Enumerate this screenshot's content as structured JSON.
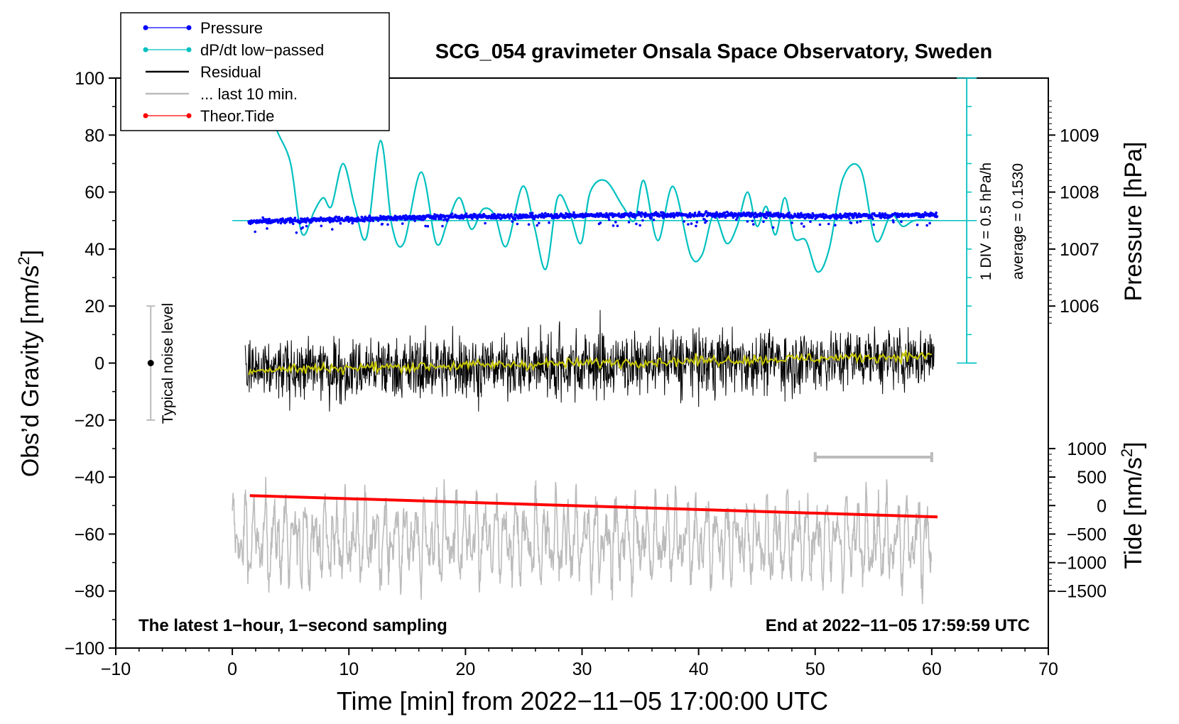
{
  "chart_data": {
    "type": "line",
    "title": "SCG_054 gravimeter Onsala Space Observatory, Sweden",
    "xlabel": "Time [min] from 2022−11−05 17:00:00 UTC",
    "xlim": [
      -10,
      70
    ],
    "x_ticks": [
      -10,
      0,
      10,
      20,
      30,
      40,
      50,
      60,
      70
    ],
    "x_tick_labels": [
      "−10",
      "0",
      "10",
      "20",
      "30",
      "40",
      "50",
      "60",
      "70"
    ],
    "left_axis": {
      "label_main": "Obs’d Gravity [nm/s",
      "label_sup": "2",
      "label_end": "]",
      "ylim": [
        -100,
        100
      ],
      "ticks": [
        -100,
        -80,
        -60,
        -40,
        -20,
        0,
        20,
        40,
        60,
        80,
        100
      ],
      "tick_labels": [
        "−100",
        "−80",
        "−60",
        "−40",
        "−20",
        "0",
        "20",
        "40",
        "60",
        "80",
        "100"
      ]
    },
    "pressure_axis": {
      "label": "Pressure [hPa]",
      "ticks": [
        1006,
        1007,
        1008,
        1009
      ],
      "tick_labels": [
        "1006",
        "1007",
        "1008",
        "1009"
      ],
      "gravity_at_1007": 40,
      "gravity_per_hpa": 20
    },
    "tide_axis": {
      "label_main": "Tide [nm/s",
      "label_sup": "2",
      "label_end": "]",
      "ticks": [
        1000,
        500,
        0,
        -500,
        -1000,
        -1500
      ],
      "tick_labels": [
        "1000",
        "500",
        "0",
        "−500",
        "−1000",
        "−1500"
      ],
      "gravity_at_0": -50,
      "gravity_per_unit": 0.02
    },
    "dpdt_scale": {
      "label_div": "1 DIV = 0.5 hPa/h",
      "label_avg": "average = 0.1530",
      "x": 63,
      "baseline": 50,
      "bottom": 0,
      "top": 100,
      "div_step": 10
    },
    "legend": {
      "position": "top-left",
      "entries": [
        {
          "label": "Pressure",
          "color": "#0000ff",
          "style": "line-dot"
        },
        {
          "label": "dP/dt low−passed",
          "color": "#00c0c0",
          "style": "line-dot"
        },
        {
          "label": "Residual",
          "color": "#000000",
          "style": "line"
        },
        {
          "label": "... last 10 min.",
          "color": "#bbbbbb",
          "style": "line"
        },
        {
          "label": "Theor.Tide",
          "color": "#ff0000",
          "style": "line-dot"
        }
      ]
    },
    "noise_bar": {
      "label": "Typical noise level",
      "x": -7,
      "center": 0,
      "low": -20,
      "high": 20
    },
    "window_bar": {
      "x_start": 50,
      "x_end": 60,
      "y": -33
    },
    "annotation_left": "The latest 1−hour, 1−second sampling",
    "annotation_right": "End at 2022−11−05 17:59:59 UTC",
    "colors": {
      "pressure": "#0000ff",
      "dpdt": "#00c0c0",
      "residual": "#000000",
      "residual_smooth": "#c8c800",
      "last10": "#bbbbbb",
      "tide": "#ff0000"
    },
    "series": {
      "dpdt": {
        "name": "dP/dt low−passed",
        "x": [
          0.1,
          1.0,
          2.0,
          3.0,
          4.0,
          5.0,
          5.7,
          6.2,
          7.0,
          7.8,
          8.5,
          9.5,
          10.5,
          11.5,
          12.7,
          13.7,
          14.7,
          16.2,
          17.5,
          18.5,
          19.5,
          20.5,
          21.5,
          22.5,
          23.5,
          24.9,
          25.9,
          26.9,
          27.9,
          28.9,
          29.9,
          30.7,
          32.0,
          33.5,
          34.5,
          35.3,
          36.5,
          37.8,
          39.3,
          40.3,
          41.3,
          42.4,
          43.3,
          44.2,
          45.0,
          45.8,
          46.6,
          47.4,
          48.2,
          49.2,
          50.2,
          51.2,
          52.4,
          53.9,
          55.2,
          56.5,
          57.5,
          58.5,
          60.0
        ],
        "y": [
          100,
          100,
          95,
          88,
          80,
          70,
          50,
          45,
          53,
          58,
          55,
          70,
          55,
          44,
          78,
          48,
          42,
          67,
          42,
          50,
          58,
          47,
          54,
          52,
          41,
          62,
          48,
          33,
          58,
          53,
          42,
          60,
          64,
          55,
          50,
          64,
          43,
          62,
          38,
          38,
          52,
          42,
          48,
          60,
          48,
          55,
          45,
          58,
          44,
          43,
          32,
          40,
          65,
          68,
          43,
          52,
          48,
          50,
          50
        ]
      },
      "pressure": {
        "name": "Pressure",
        "x": [
          1.4,
          5.0,
          10.0,
          15.0,
          20.0,
          25.0,
          30.0,
          35.0,
          40.0,
          45.0,
          50.0,
          55.0,
          60.5
        ],
        "y": [
          49.5,
          50.0,
          50.5,
          51.0,
          51.5,
          51.5,
          51.8,
          52.0,
          52.0,
          52.0,
          51.5,
          51.8,
          52.0
        ]
      },
      "tide": {
        "name": "Theor.Tide",
        "x": [
          1.5,
          60.5
        ],
        "y": [
          -46.5,
          -54.0
        ]
      }
    }
  }
}
